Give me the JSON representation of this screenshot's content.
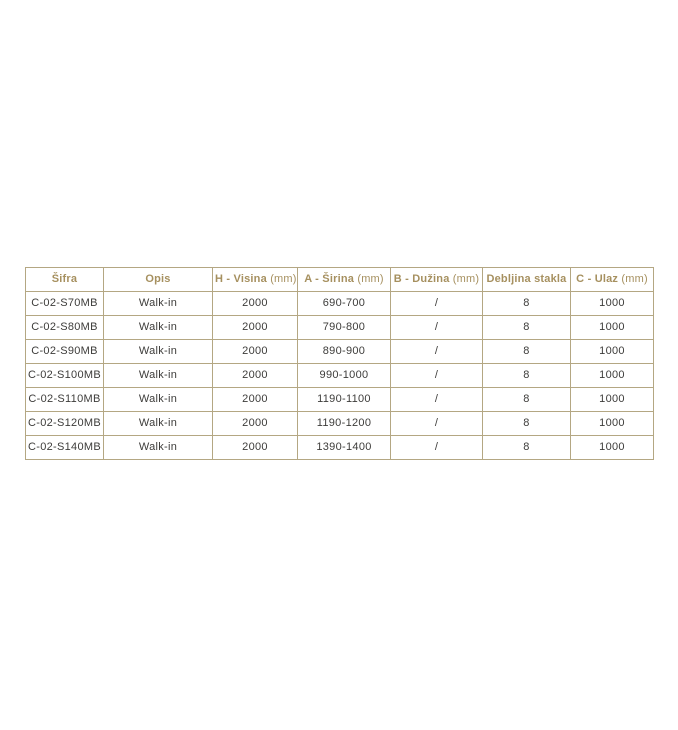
{
  "page": {
    "background": "#ffffff"
  },
  "table": {
    "semantic": "walk-in-shower-glass-specifications",
    "colors": {
      "border": "#b4a783",
      "header_text": "#a6905f",
      "cell_text": "#3d3c3a",
      "cell_background": "#ffffff"
    },
    "columns": [
      {
        "key": "sifra",
        "label": "Šifra",
        "unit": ""
      },
      {
        "key": "opis",
        "label": "Opis",
        "unit": ""
      },
      {
        "key": "visina",
        "label": "H - Visina",
        "unit": "(mm)"
      },
      {
        "key": "sirina",
        "label": "A - Širina",
        "unit": "(mm)"
      },
      {
        "key": "duzina",
        "label": "B - Dužina",
        "unit": "(mm)"
      },
      {
        "key": "debljina",
        "label": "Debljina stakla",
        "unit": ""
      },
      {
        "key": "ulaz",
        "label": "C - Ulaz",
        "unit": "(mm)"
      }
    ],
    "rows": [
      [
        "C-02-S70MB",
        "Walk-in",
        "2000",
        "690-700",
        "/",
        "8",
        "1000"
      ],
      [
        "C-02-S80MB",
        "Walk-in",
        "2000",
        "790-800",
        "/",
        "8",
        "1000"
      ],
      [
        "C-02-S90MB",
        "Walk-in",
        "2000",
        "890-900",
        "/",
        "8",
        "1000"
      ],
      [
        "C-02-S100MB",
        "Walk-in",
        "2000",
        "990-1000",
        "/",
        "8",
        "1000"
      ],
      [
        "C-02-S110MB",
        "Walk-in",
        "2000",
        "1190-1100",
        "/",
        "8",
        "1000"
      ],
      [
        "C-02-S120MB",
        "Walk-in",
        "2000",
        "1190-1200",
        "/",
        "8",
        "1000"
      ],
      [
        "C-02-S140MB",
        "Walk-in",
        "2000",
        "1390-1400",
        "/",
        "8",
        "1000"
      ]
    ]
  }
}
